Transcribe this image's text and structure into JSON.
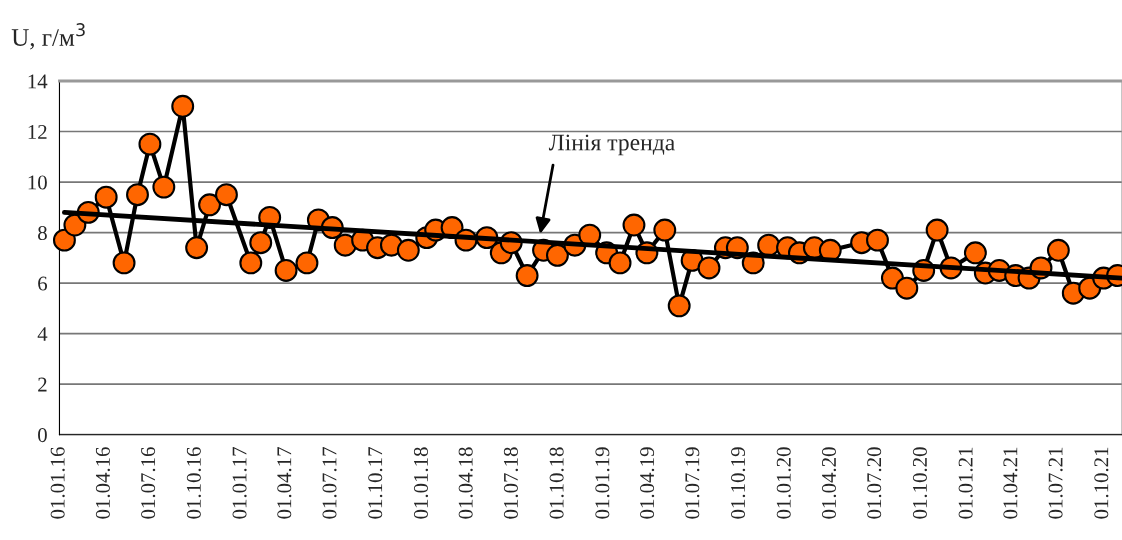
{
  "chart_data": {
    "type": "line",
    "ylabel": "U, г/м$^{3}$",
    "marker": "circle",
    "grid": "y",
    "legend": false,
    "xlim": [
      "2016-01-01",
      "2021-11-08"
    ],
    "ylim": [
      0,
      14
    ],
    "yticks": [
      0,
      2,
      4,
      6,
      8,
      10,
      12,
      14
    ],
    "xticks": [
      {
        "value": "2016-01-01",
        "label": "01.01.16"
      },
      {
        "value": "2016-04-01",
        "label": "01.04.16"
      },
      {
        "value": "2016-07-01",
        "label": "01.07.16"
      },
      {
        "value": "2016-10-01",
        "label": "01.10.16"
      },
      {
        "value": "2017-01-01",
        "label": "01.01.17"
      },
      {
        "value": "2017-04-01",
        "label": "01.04.17"
      },
      {
        "value": "2017-07-01",
        "label": "01.07.17"
      },
      {
        "value": "2017-10-01",
        "label": "01.10.17"
      },
      {
        "value": "2018-01-01",
        "label": "01.01.18"
      },
      {
        "value": "2018-04-01",
        "label": "01.04.18"
      },
      {
        "value": "2018-07-01",
        "label": "01.07.18"
      },
      {
        "value": "2018-10-01",
        "label": "01.10.18"
      },
      {
        "value": "2019-01-01",
        "label": "01.01.19"
      },
      {
        "value": "2019-04-01",
        "label": "01.04.19"
      },
      {
        "value": "2019-07-01",
        "label": "01.07.19"
      },
      {
        "value": "2019-10-01",
        "label": "01.10.19"
      },
      {
        "value": "2020-01-01",
        "label": "01.01.20"
      },
      {
        "value": "2020-04-01",
        "label": "01.04.20"
      },
      {
        "value": "2020-07-01",
        "label": "01.07.20"
      },
      {
        "value": "2020-10-01",
        "label": "01.10.20"
      },
      {
        "value": "2021-01-01",
        "label": "01.01.21"
      },
      {
        "value": "2021-04-01",
        "label": "01.04.21"
      },
      {
        "value": "2021-07-01",
        "label": "01.07.21"
      },
      {
        "value": "2021-10-01",
        "label": "01.10.21"
      }
    ],
    "series": [
      {
        "color": "#ff6600",
        "x": [
          "2016-01-11",
          "2016-02-01",
          "2016-02-28",
          "2016-04-04",
          "2016-05-10",
          "2016-06-06",
          "2016-07-01",
          "2016-07-29",
          "2016-09-05",
          "2016-10-03",
          "2016-10-29",
          "2016-12-02",
          "2017-01-20",
          "2017-02-09",
          "2017-02-27",
          "2017-04-01",
          "2017-05-13",
          "2017-06-05",
          "2017-07-03",
          "2017-07-29",
          "2017-09-02",
          "2017-10-02",
          "2017-10-30",
          "2017-12-03",
          "2018-01-09",
          "2018-01-27",
          "2018-03-01",
          "2018-03-29",
          "2018-05-10",
          "2018-06-08",
          "2018-06-28",
          "2018-07-30",
          "2018-09-01",
          "2018-09-29",
          "2018-11-03",
          "2018-12-03",
          "2019-01-06",
          "2019-02-02",
          "2019-03-02",
          "2019-03-28",
          "2019-05-03",
          "2019-06-01",
          "2019-06-27",
          "2019-07-31",
          "2019-09-02",
          "2019-09-26",
          "2019-10-28",
          "2019-11-28",
          "2020-01-05",
          "2020-01-29",
          "2020-02-28",
          "2020-03-31",
          "2020-06-02",
          "2020-07-04",
          "2020-08-03",
          "2020-09-01",
          "2020-10-05",
          "2020-11-01",
          "2020-11-29",
          "2021-01-17",
          "2021-02-06",
          "2021-03-06",
          "2021-04-08",
          "2021-05-05",
          "2021-05-29",
          "2021-07-03",
          "2021-08-02",
          "2021-09-04",
          "2021-10-02",
          "2021-10-30"
        ],
        "values": [
          7.7,
          8.3,
          8.8,
          9.4,
          6.8,
          9.5,
          11.5,
          9.8,
          13.0,
          7.4,
          9.1,
          9.5,
          6.8,
          7.6,
          8.6,
          6.5,
          6.8,
          8.5,
          8.2,
          7.5,
          7.7,
          7.4,
          7.5,
          7.3,
          7.8,
          8.1,
          8.2,
          7.7,
          7.8,
          7.2,
          7.6,
          6.3,
          7.3,
          7.1,
          7.5,
          7.9,
          7.2,
          6.8,
          8.3,
          7.2,
          8.1,
          5.1,
          6.9,
          6.6,
          7.4,
          7.4,
          6.8,
          7.5,
          7.4,
          7.2,
          7.4,
          7.3,
          7.6,
          7.7,
          6.2,
          5.8,
          6.5,
          8.1,
          6.6,
          7.2,
          6.4,
          6.5,
          6.3,
          6.2,
          6.6,
          7.3,
          5.6,
          5.8,
          6.2,
          6.3
        ]
      },
      {
        "type": "line",
        "color": "#000000",
        "marker": "none",
        "x": [
          "2016-01-11",
          "2021-11-08"
        ],
        "values": [
          8.8,
          6.2
        ]
      }
    ],
    "annotations": [
      "Лінія тренда"
    ]
  }
}
